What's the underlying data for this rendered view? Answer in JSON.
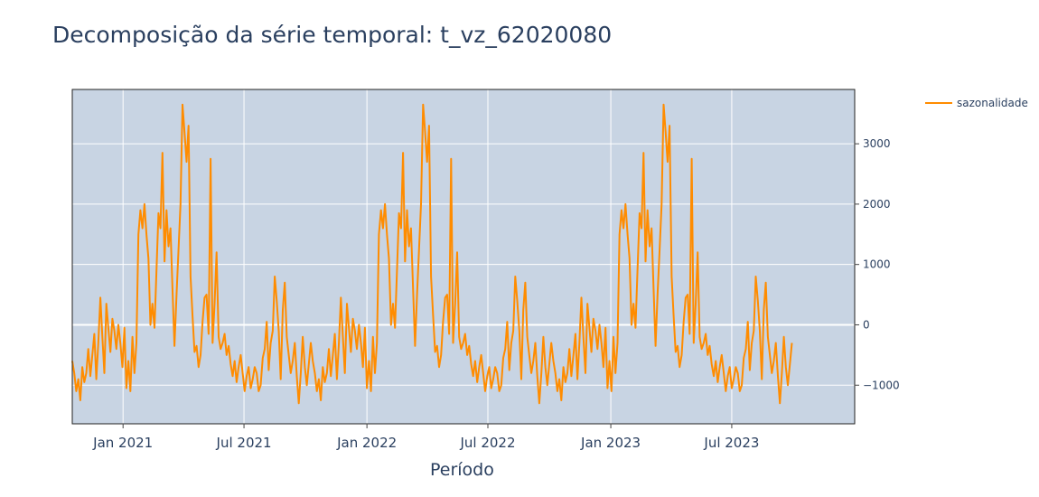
{
  "chart_data": {
    "type": "line",
    "title": "Decomposição da série temporal: t_vz_62020080",
    "xlabel": "Período",
    "ylabel": "",
    "x_range": [
      "2020-10-17",
      "2024-01-01"
    ],
    "ylim": [
      -1640,
      3900
    ],
    "x_ticks": [
      {
        "date": "2021-01-01",
        "label": "Jan 2021"
      },
      {
        "date": "2021-07-01",
        "label": "Jul 2021"
      },
      {
        "date": "2022-01-01",
        "label": "Jan 2022"
      },
      {
        "date": "2022-07-01",
        "label": "Jul 2022"
      },
      {
        "date": "2023-01-01",
        "label": "Jan 2023"
      },
      {
        "date": "2023-07-01",
        "label": "Jul 2023"
      }
    ],
    "y_ticks": [
      {
        "value": 3000,
        "label": "3000"
      },
      {
        "value": 2000,
        "label": "2000"
      },
      {
        "value": 1000,
        "label": "1000"
      },
      {
        "value": 0,
        "label": "0"
      },
      {
        "value": -1000,
        "label": "−1000"
      }
    ],
    "y_axis_side": "right",
    "grid": true,
    "legend": {
      "position": "top-right"
    },
    "series": [
      {
        "name": "sazonalidade",
        "color": "#ff8c00",
        "x_start": "2020-10-17",
        "step_days": 3,
        "period_points": 120,
        "repeats": 3,
        "values": [
          -600,
          -800,
          -1100,
          -900,
          -1250,
          -700,
          -950,
          -800,
          -400,
          -850,
          -500,
          -150,
          -900,
          -300,
          450,
          -200,
          -800,
          350,
          -50,
          -450,
          100,
          -100,
          -400,
          0,
          -300,
          -700,
          -50,
          -1050,
          -600,
          -1100,
          -200,
          -800,
          -300,
          1500,
          1900,
          1600,
          2000,
          1500,
          1100,
          0,
          350,
          -50,
          900,
          1850,
          1600,
          2850,
          1050,
          1900,
          1300,
          1600,
          600,
          -350,
          500,
          1250,
          2000,
          3650,
          3200,
          2700,
          3300,
          800,
          150,
          -450,
          -350,
          -700,
          -500,
          50,
          450,
          500,
          -150,
          2750,
          -300,
          350,
          1200,
          -200,
          -400,
          -300,
          -150,
          -500,
          -350,
          -650,
          -850,
          -600,
          -950,
          -700,
          -500,
          -800,
          -1100,
          -850,
          -700,
          -1050,
          -900,
          -700,
          -800,
          -1100,
          -1000,
          -550,
          -400,
          50,
          -750,
          -300,
          -100,
          800,
          400,
          -100,
          -900,
          250,
          700,
          -200,
          -500,
          -800,
          -600,
          -300,
          -850,
          -1300,
          -800,
          -200,
          -700,
          -1000,
          -650,
          -300
        ]
      }
    ]
  }
}
